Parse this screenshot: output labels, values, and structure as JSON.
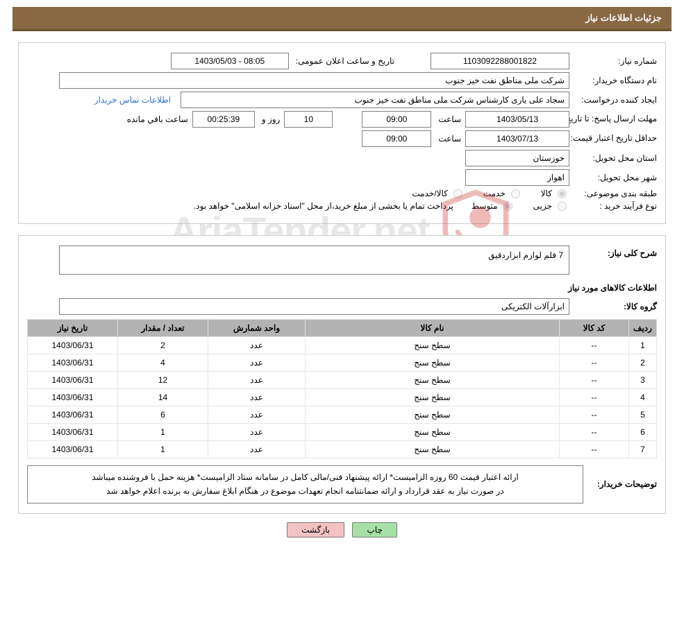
{
  "colors": {
    "header_bg": "#886944",
    "header_border": "#6b4f2e",
    "header_text": "#ffffff",
    "panel_border": "#cccccc",
    "field_border": "#7f7f7f",
    "link": "#2a6fdb",
    "table_header_bg": "#b3b3b3",
    "table_border": "#e0e0e0",
    "btn_green": "#a6e0a6",
    "btn_pink": "#f3c3c3",
    "watermark_text": "#b8b8b8",
    "watermark_red": "#c9302c"
  },
  "header": {
    "title": "جزئیات اطلاعات نیاز"
  },
  "labels": {
    "need_no": "شماره نیاز:",
    "announce_dt": "تاریخ و ساعت اعلان عمومی:",
    "buyer_org": "نام دستگاه خریدار:",
    "requester": "ایجاد کننده درخواست:",
    "contact_link": "اطلاعات تماس خریدار",
    "deadline": "مهلت ارسال پاسخ:",
    "until_date": "تا تاریخ:",
    "time_word": "ساعت",
    "days_and": "روز و",
    "time_left": "ساعت باقي مانده",
    "price_valid": "حداقل تاریخ اعتبار قیمت:",
    "delivery_prov": "استان محل تحویل:",
    "delivery_city": "شهر محل تحویل:",
    "subject_class": "طبقه بندی موضوعی:",
    "class_goods": "کالا",
    "class_service": "خدمت",
    "class_goods_service": "کالا/خدمت",
    "purchase_type": "نوع فرآیند خرید :",
    "type_partial": "جزیی",
    "type_medium": "متوسط",
    "payment_note": "پرداخت تمام یا بخشی از مبلغ خرید،از محل \"اسناد خزانه اسلامی\" خواهد بود.",
    "need_desc": "شرح کلی نیاز:",
    "goods_info_title": "اطلاعات کالاهای مورد نیاز",
    "goods_group": "گروه کالا:",
    "buyer_notes_lbl": "توضیحات خریدار:",
    "btn_print": "چاپ",
    "btn_back": "بازگشت"
  },
  "values": {
    "need_no": "1103092288001822",
    "announce_dt": "1403/05/03 - 08:05",
    "buyer_org": "شرکت ملی مناطق نفت خیز جنوب",
    "requester": "سجاد علی یاری کارشناس شرکت ملی مناطق نفت خیز جنوب",
    "deadline_date": "1403/05/13",
    "deadline_time": "09:00",
    "days_left": "10",
    "countdown": "00:25:39",
    "price_valid_date": "1403/07/13",
    "price_valid_time": "09:00",
    "delivery_prov": "خوزستان",
    "delivery_city": "اهواز",
    "need_desc": "7 قلم لوازم ابزاردقیق",
    "goods_group": "ابزارآلات الکتریکی",
    "buyer_notes_line1": "ارائه اعتبار قیمت 60 روزه الزامیست* ارائه پیشنهاد فنی/مالی کامل در سامانه ستاد الزامیست* هزینه حمل با فروشنده میباشد",
    "buyer_notes_line2": "در صورت نیاز به عقد قرارداد و ارائه ضمانتنامه انجام تعهدات موضوع در هنگام ابلاغ سفارش به برنده اعلام خواهد شد"
  },
  "table": {
    "columns": [
      "ردیف",
      "کد کالا",
      "نام کالا",
      "واحد شمارش",
      "تعداد / مقدار",
      "تاریخ نیاز"
    ],
    "col_widths": [
      "40px",
      "100px",
      "auto",
      "140px",
      "130px",
      "130px"
    ],
    "rows": [
      [
        "1",
        "--",
        "سطح سنج",
        "عدد",
        "2",
        "1403/06/31"
      ],
      [
        "2",
        "--",
        "سطح سنج",
        "عدد",
        "4",
        "1403/06/31"
      ],
      [
        "3",
        "--",
        "سطح سنج",
        "عدد",
        "12",
        "1403/06/31"
      ],
      [
        "4",
        "--",
        "سطح سنج",
        "عدد",
        "14",
        "1403/06/31"
      ],
      [
        "5",
        "--",
        "سطح سنج",
        "عدد",
        "6",
        "1403/06/31"
      ],
      [
        "6",
        "--",
        "سطح سنج",
        "عدد",
        "1",
        "1403/06/31"
      ],
      [
        "7",
        "--",
        "سطح سنج",
        "عدد",
        "1",
        "1403/06/31"
      ]
    ]
  },
  "watermark": {
    "text_pre": "AriaTender",
    "text_dot": ".",
    "text_post": "net"
  }
}
